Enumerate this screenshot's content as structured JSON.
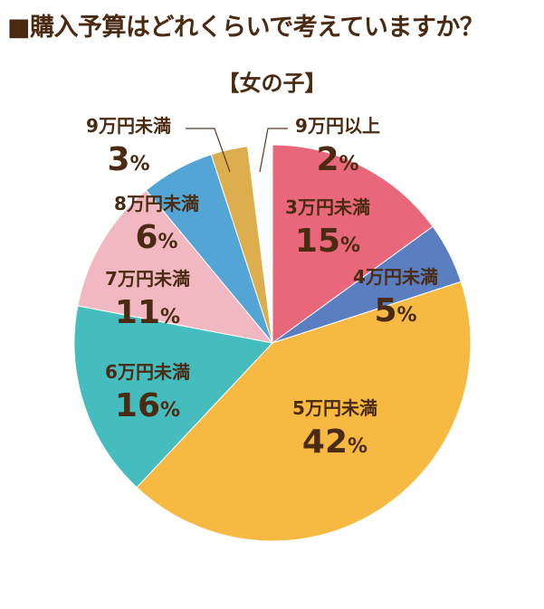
{
  "title": "■購入予算はどれくらいで考えていますか？",
  "subtitle": "【女の子】",
  "chart_data": {
    "type": "pie",
    "title": "■購入予算はどれくらいで考えていますか？",
    "subtitle": "【女の子】",
    "start": "12 o'clock",
    "direction": "clockwise",
    "slices": [
      {
        "label": "3万円未満",
        "value": 15,
        "display": "15%",
        "color": "#e9677a"
      },
      {
        "label": "4万円未満",
        "value": 5,
        "display": "5%",
        "color": "#5b7ec1"
      },
      {
        "label": "5万円未満",
        "value": 42,
        "display": "42%",
        "color": "#f6b942"
      },
      {
        "label": "6万円未満",
        "value": 16,
        "display": "16%",
        "color": "#45bcbd"
      },
      {
        "label": "7万円未満",
        "value": 11,
        "display": "11%",
        "color": "#f2b8c1"
      },
      {
        "label": "8万円未満",
        "value": 6,
        "display": "6%",
        "color": "#53a5d6"
      },
      {
        "label": "9万円未満",
        "value": 3,
        "display": "3%",
        "color": "#dcae4d"
      },
      {
        "label": "9万円以上",
        "value": 2,
        "display": "2%",
        "color": "#ffffff"
      }
    ],
    "label_color": "#4a2a12"
  }
}
